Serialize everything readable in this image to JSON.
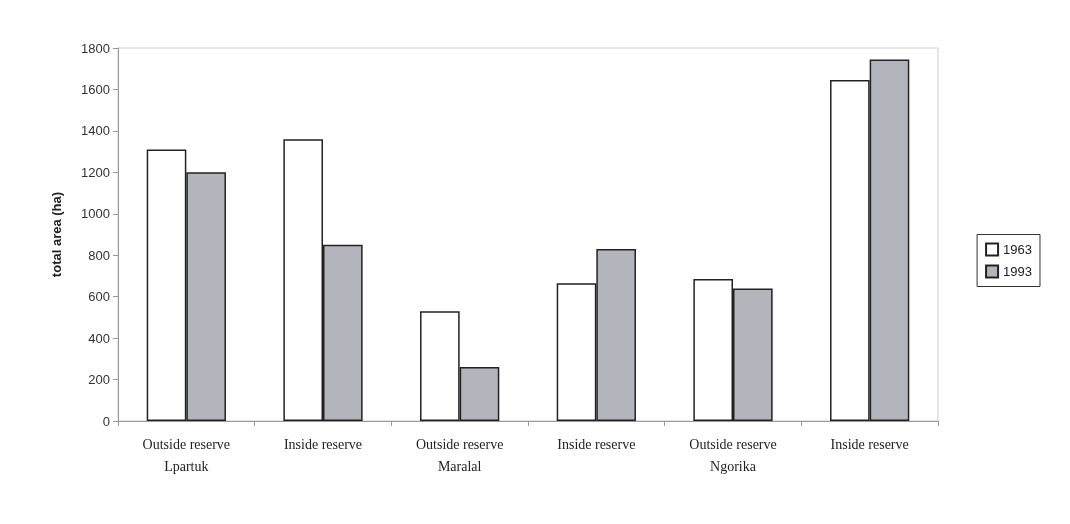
{
  "chart_data": {
    "type": "bar",
    "ylabel": "total area (ha)",
    "categories": [
      "Outside reserve\nLpartuk",
      "Inside reserve",
      "Outside reserve\nMaralal",
      "Inside reserve",
      "Outside reserve\nNgorika",
      "Inside reserve"
    ],
    "series": [
      {
        "name": "1963",
        "color": "#ffffff",
        "values": [
          1310,
          1360,
          530,
          665,
          685,
          1645
        ]
      },
      {
        "name": "1993",
        "color": "#b4b4bc",
        "values": [
          1200,
          850,
          260,
          830,
          640,
          1745
        ]
      }
    ],
    "ylim": [
      0,
      1800
    ],
    "yticks": [
      0,
      200,
      400,
      600,
      800,
      1000,
      1200,
      1400,
      1600,
      1800
    ],
    "grid": false,
    "legend": "right"
  }
}
